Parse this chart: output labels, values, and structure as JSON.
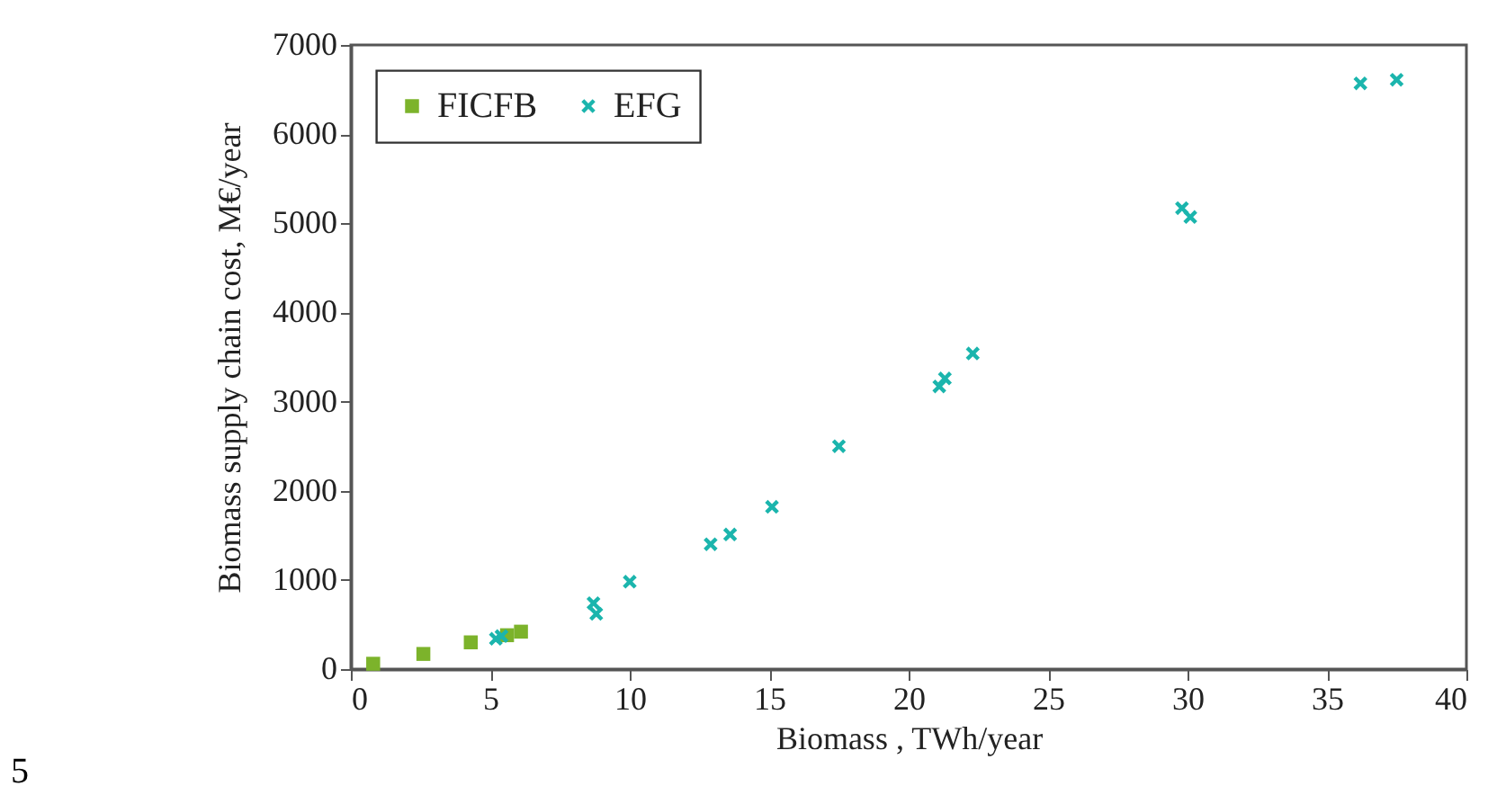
{
  "chart_data": {
    "type": "scatter",
    "xlabel": "Biomass , TWh/year",
    "ylabel": "Biomass supply chain cost, M€/year",
    "xlim": [
      0,
      40
    ],
    "xticks": [
      0,
      5,
      10,
      15,
      20,
      25,
      30,
      35,
      40
    ],
    "ylim": [
      0,
      7000
    ],
    "yticks": [
      0,
      1000,
      2000,
      3000,
      4000,
      5000,
      6000,
      7000
    ],
    "grid": false,
    "legend": "top left",
    "annotations": [
      "5"
    ],
    "series": [
      {
        "name": "FICFB",
        "color": "#7cb32b",
        "marker": "square",
        "x": [
          0.8,
          2.6,
          4.3,
          5.6,
          6.1
        ],
        "values": [
          60,
          170,
          300,
          380,
          420
        ]
      },
      {
        "name": "EFG",
        "color": "#1bb5ad",
        "marker": "cross",
        "x": [
          5.2,
          5.4,
          8.7,
          8.8,
          10,
          12.9,
          13.6,
          15.1,
          17.5,
          21.1,
          21.3,
          22.3,
          29.8,
          30.1,
          36.2,
          37.5
        ],
        "values": [
          340,
          370,
          740,
          620,
          980,
          1400,
          1510,
          1820,
          2500,
          3170,
          3260,
          3540,
          5170,
          5070,
          6570,
          6610
        ]
      }
    ]
  }
}
